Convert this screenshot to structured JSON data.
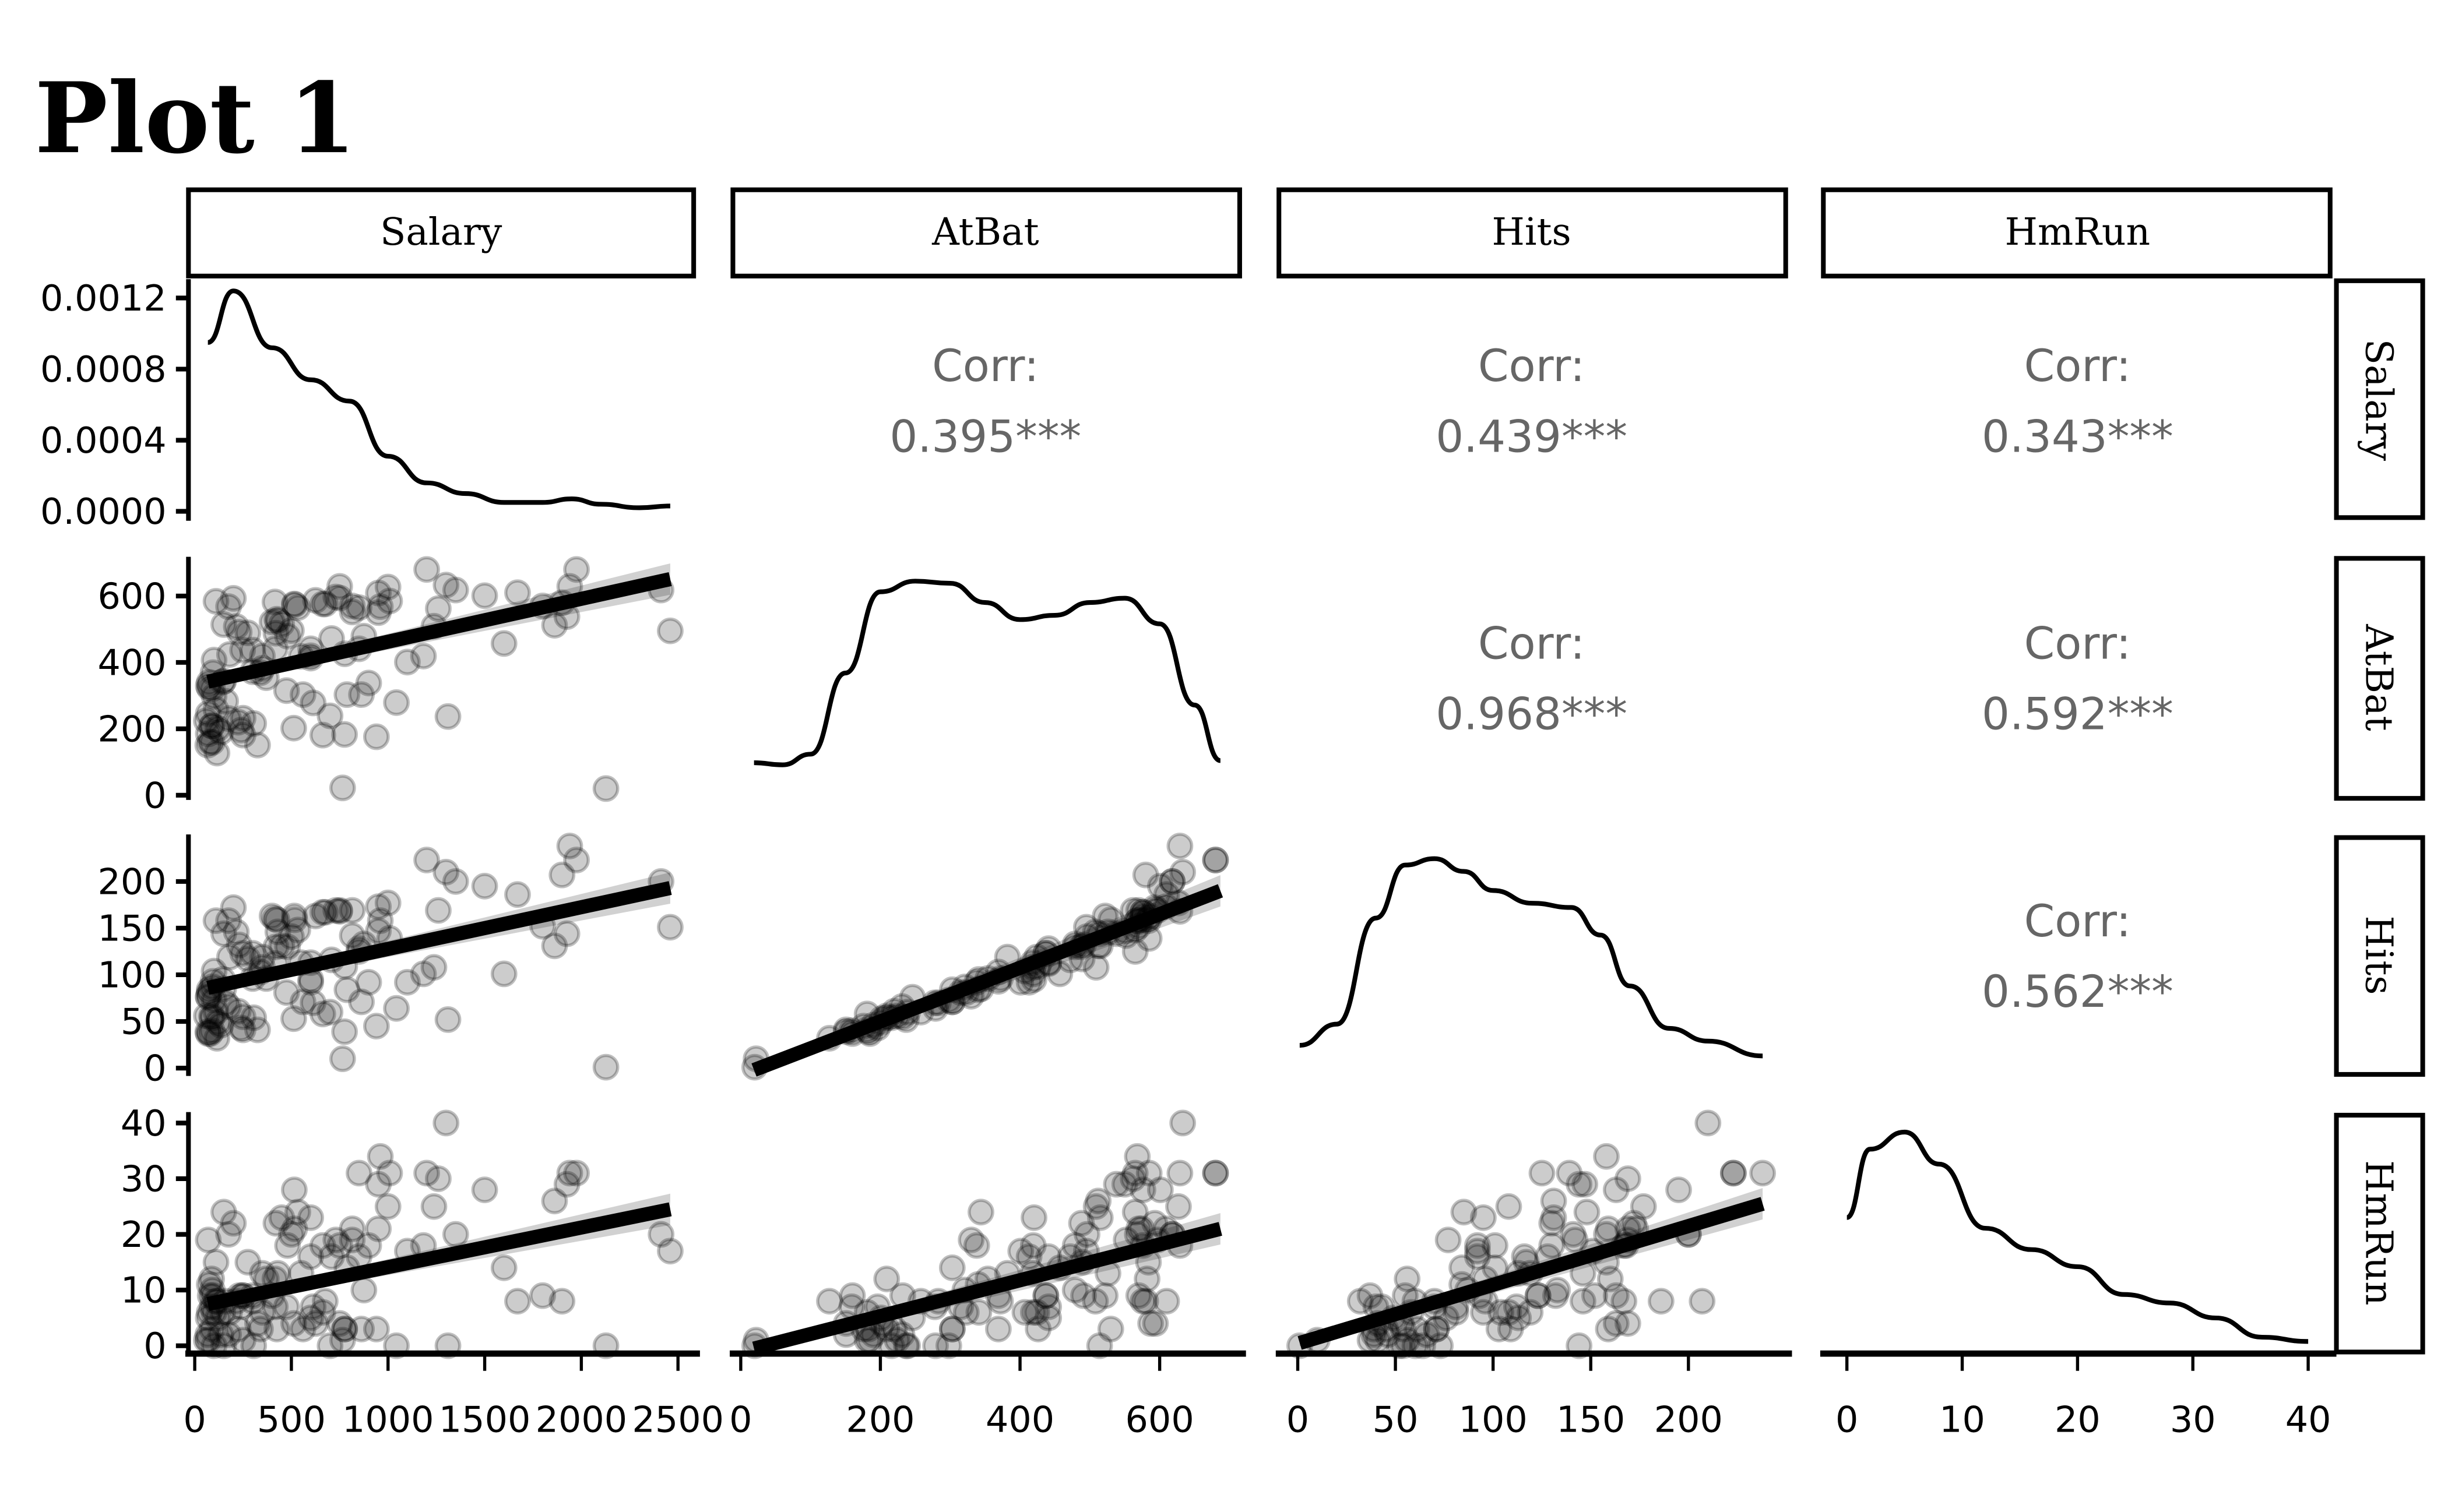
{
  "chart_data": {
    "type": "scatter",
    "title": "Plot 1",
    "variables": [
      "Salary",
      "AtBat",
      "Hits",
      "HmRun"
    ],
    "axes": {
      "Salary": {
        "range": [
          0,
          2500
        ],
        "ticks": [
          0,
          500,
          1000,
          1500,
          2000,
          2500
        ],
        "tick_labels": [
          "0",
          "500",
          "1000",
          "1500",
          "2000",
          "2500"
        ]
      },
      "AtBat": {
        "range": [
          0,
          700
        ],
        "ticks": [
          0,
          200,
          400,
          600
        ],
        "tick_labels": [
          "0",
          "200",
          "400",
          "600"
        ]
      },
      "Hits": {
        "range": [
          0,
          240
        ],
        "ticks": [
          0,
          50,
          100,
          150,
          200
        ],
        "tick_labels": [
          "0",
          "50",
          "100",
          "150",
          "200"
        ]
      },
      "HmRun": {
        "range": [
          0,
          40
        ],
        "ticks": [
          0,
          10,
          20,
          30,
          40
        ],
        "tick_labels": [
          "0",
          "10",
          "20",
          "30",
          "40"
        ]
      },
      "SalaryDensity": {
        "range": [
          0,
          0.0013
        ],
        "ticks": [
          0,
          0.0004,
          0.0008,
          0.0012
        ],
        "tick_labels": [
          "0.0000",
          "0.0004",
          "0.0008",
          "0.0012"
        ]
      }
    },
    "correlations": [
      {
        "row": "Salary",
        "col": "AtBat",
        "label": "Corr:",
        "value": "0.395***"
      },
      {
        "row": "Salary",
        "col": "Hits",
        "label": "Corr:",
        "value": "0.439***"
      },
      {
        "row": "Salary",
        "col": "HmRun",
        "label": "Corr:",
        "value": "0.343***"
      },
      {
        "row": "AtBat",
        "col": "Hits",
        "label": "Corr:",
        "value": "0.968***"
      },
      {
        "row": "AtBat",
        "col": "HmRun",
        "label": "Corr:",
        "value": "0.592***"
      },
      {
        "row": "Hits",
        "col": "HmRun",
        "label": "Corr:",
        "value": "0.562***"
      }
    ],
    "densities": {
      "Salary": {
        "x": [
          68,
          200,
          400,
          600,
          800,
          1000,
          1200,
          1400,
          1600,
          1800,
          1950,
          2100,
          2300,
          2460
        ],
        "y": [
          0.00095,
          0.00124,
          0.00092,
          0.00074,
          0.00062,
          0.00031,
          0.00016,
          0.0001,
          5e-05,
          5e-05,
          7e-05,
          4e-05,
          2e-05,
          3e-05
        ]
      },
      "AtBat": {
        "x": [
          19,
          60,
          100,
          150,
          200,
          250,
          300,
          350,
          400,
          450,
          500,
          550,
          600,
          650,
          687
        ],
        "y": [
          0.13,
          0.12,
          0.17,
          0.55,
          0.93,
          0.98,
          0.97,
          0.88,
          0.8,
          0.82,
          0.88,
          0.9,
          0.78,
          0.4,
          0.14
        ]
      },
      "Hits": {
        "x": [
          1,
          20,
          40,
          55,
          70,
          85,
          100,
          120,
          140,
          155,
          170,
          190,
          210,
          238
        ],
        "y": [
          0.1,
          0.2,
          0.7,
          0.95,
          0.98,
          0.92,
          0.83,
          0.77,
          0.75,
          0.62,
          0.38,
          0.18,
          0.12,
          0.05
        ]
      },
      "HmRun": {
        "x": [
          0,
          2,
          5,
          8,
          12,
          16,
          20,
          24,
          28,
          32,
          36,
          40
        ],
        "y": [
          0.6,
          0.92,
          1.0,
          0.85,
          0.55,
          0.45,
          0.37,
          0.24,
          0.2,
          0.13,
          0.04,
          0.02
        ]
      }
    },
    "regressions": [
      {
        "x": "Salary",
        "y": "AtBat",
        "x_range": [
          68,
          2460
        ],
        "y_fit": [
          342,
          651
        ]
      },
      {
        "x": "Salary",
        "y": "Hits",
        "x_range": [
          68,
          2460
        ],
        "y_fit": [
          86,
          193
        ]
      },
      {
        "x": "Salary",
        "y": "HmRun",
        "x_range": [
          68,
          2460
        ],
        "y_fit": [
          7.5,
          24.5
        ]
      },
      {
        "x": "AtBat",
        "y": "Hits",
        "x_range": [
          19,
          687
        ],
        "y_fit": [
          -2,
          190
        ]
      },
      {
        "x": "AtBat",
        "y": "HmRun",
        "x_range": [
          19,
          687
        ],
        "y_fit": [
          -0.5,
          21
        ]
      },
      {
        "x": "Hits",
        "y": "HmRun",
        "x_range": [
          1,
          238
        ],
        "y_fit": [
          0.5,
          25.5
        ]
      }
    ],
    "points": [
      {
        "Salary": 475,
        "AtBat": 315,
        "Hits": 81,
        "HmRun": 7
      },
      {
        "Salary": 480,
        "AtBat": 479,
        "Hits": 130,
        "HmRun": 18
      },
      {
        "Salary": 500,
        "AtBat": 496,
        "Hits": 141,
        "HmRun": 20
      },
      {
        "Salary": 91.5,
        "AtBat": 321,
        "Hits": 87,
        "HmRun": 10
      },
      {
        "Salary": 750,
        "AtBat": 594,
        "Hits": 169,
        "HmRun": 4
      },
      {
        "Salary": 70,
        "AtBat": 185,
        "Hits": 37,
        "HmRun": 1
      },
      {
        "Salary": 100,
        "AtBat": 298,
        "Hits": 73,
        "HmRun": 0
      },
      {
        "Salary": 75,
        "AtBat": 323,
        "Hits": 81,
        "HmRun": 6
      },
      {
        "Salary": 1100,
        "AtBat": 401,
        "Hits": 92,
        "HmRun": 17
      },
      {
        "Salary": 517,
        "AtBat": 574,
        "Hits": 159,
        "HmRun": 21
      },
      {
        "Salary": 512,
        "AtBat": 202,
        "Hits": 53,
        "HmRun": 4
      },
      {
        "Salary": 550,
        "AtBat": 418,
        "Hits": 113,
        "HmRun": 13
      },
      {
        "Salary": 700,
        "AtBat": 239,
        "Hits": 60,
        "HmRun": 0
      },
      {
        "Salary": 240,
        "AtBat": 196,
        "Hits": 43,
        "HmRun": 7
      },
      {
        "Salary": 775,
        "AtBat": 183,
        "Hits": 39,
        "HmRun": 3
      },
      {
        "Salary": 175,
        "AtBat": 568,
        "Hits": 158,
        "HmRun": 20
      },
      {
        "Salary": 135,
        "AtBat": 190,
        "Hits": 46,
        "HmRun": 2
      },
      {
        "Salary": 100,
        "AtBat": 407,
        "Hits": 104,
        "HmRun": 6
      },
      {
        "Salary": 115,
        "AtBat": 127,
        "Hits": 32,
        "HmRun": 8
      },
      {
        "Salary": 600,
        "AtBat": 413,
        "Hits": 92,
        "HmRun": 16
      },
      {
        "Salary": 776,
        "AtBat": 426,
        "Hits": 109,
        "HmRun": 3
      },
      {
        "Salary": 765,
        "AtBat": 22,
        "Hits": 10,
        "HmRun": 1
      },
      {
        "Salary": 708,
        "AtBat": 472,
        "Hits": 116,
        "HmRun": 16
      },
      {
        "Salary": 750,
        "AtBat": 629,
        "Hits": 168,
        "HmRun": 18
      },
      {
        "Salary": 625,
        "AtBat": 587,
        "Hits": 163,
        "HmRun": 4
      },
      {
        "Salary": 900,
        "AtBat": 338,
        "Hits": 92,
        "HmRun": 18
      },
      {
        "Salary": 110,
        "AtBat": 584,
        "Hits": 158,
        "HmRun": 15
      },
      {
        "Salary": 612.5,
        "AtBat": 278,
        "Hits": 70,
        "HmRun": 7
      },
      {
        "Salary": 300,
        "AtBat": 437,
        "Hits": 123,
        "HmRun": 9
      },
      {
        "Salary": 850,
        "AtBat": 565,
        "Hits": 125,
        "HmRun": 31
      },
      {
        "Salary": 90,
        "AtBat": 209,
        "Hits": 54,
        "HmRun": 3
      },
      {
        "Salary": 67.5,
        "AtBat": 151,
        "Hits": 39,
        "HmRun": 2
      },
      {
        "Salary": 180,
        "AtBat": 424,
        "Hits": 119,
        "HmRun": 6
      },
      {
        "Salary": 305,
        "AtBat": 216,
        "Hits": 54,
        "HmRun": 0
      },
      {
        "Salary": 215,
        "AtBat": 508,
        "Hits": 146,
        "HmRun": 8
      },
      {
        "Salary": 247.5,
        "AtBat": 437,
        "Hits": 123,
        "HmRun": 9
      },
      {
        "Salary": 815,
        "AtBat": 570,
        "Hits": 169,
        "HmRun": 21
      },
      {
        "Salary": 875,
        "AtBat": 479,
        "Hits": 133,
        "HmRun": 10
      },
      {
        "Salary": 70,
        "AtBat": 330,
        "Hits": 77,
        "HmRun": 19
      },
      {
        "Salary": 1200,
        "AtBat": 680,
        "Hits": 223,
        "HmRun": 31
      },
      {
        "Salary": 675,
        "AtBat": 576,
        "Hits": 167,
        "HmRun": 8
      },
      {
        "Salary": 415,
        "AtBat": 582,
        "Hits": 160,
        "HmRun": 12
      },
      {
        "Salary": 340,
        "AtBat": 369,
        "Hits": 103,
        "HmRun": 3
      },
      {
        "Salary": 416.7,
        "AtBat": 441,
        "Hits": 112,
        "HmRun": 7
      },
      {
        "Salary": 1350,
        "AtBat": 618,
        "Hits": 200,
        "HmRun": 20
      },
      {
        "Salary": 90,
        "AtBat": 159,
        "Hits": 40,
        "HmRun": 7
      },
      {
        "Salary": 275,
        "AtBat": 489,
        "Hits": 117,
        "HmRun": 15
      },
      {
        "Salary": 230,
        "AtBat": 491,
        "Hits": 132,
        "HmRun": 9
      },
      {
        "Salary": 225,
        "AtBat": 220,
        "Hits": 61,
        "HmRun": 3
      },
      {
        "Salary": 950,
        "AtBat": 609,
        "Hits": 173,
        "HmRun": 21
      },
      {
        "Salary": 2460,
        "AtBat": 495,
        "Hits": 151,
        "HmRun": 17
      },
      {
        "Salary": 2412.5,
        "AtBat": 618,
        "Hits": 200,
        "HmRun": 20
      },
      {
        "Salary": 2127.3,
        "AtBat": 20,
        "Hits": 1,
        "HmRun": 0
      },
      {
        "Salary": 1940,
        "AtBat": 629,
        "Hits": 238,
        "HmRun": 31
      },
      {
        "Salary": 1975,
        "AtBat": 680,
        "Hits": 223,
        "HmRun": 31
      },
      {
        "Salary": 1861.5,
        "AtBat": 512,
        "Hits": 131,
        "HmRun": 26
      },
      {
        "Salary": 1900,
        "AtBat": 580,
        "Hits": 207,
        "HmRun": 8
      },
      {
        "Salary": 1300,
        "AtBat": 633,
        "Hits": 210,
        "HmRun": 40
      },
      {
        "Salary": 1260,
        "AtBat": 562,
        "Hits": 169,
        "HmRun": 30
      },
      {
        "Salary": 1237.5,
        "AtBat": 509,
        "Hits": 108,
        "HmRun": 25
      },
      {
        "Salary": 1600,
        "AtBat": 457,
        "Hits": 101,
        "HmRun": 14
      },
      {
        "Salary": 1310,
        "AtBat": 237,
        "Hits": 52,
        "HmRun": 0
      },
      {
        "Salary": 1008.3,
        "AtBat": 585,
        "Hits": 139,
        "HmRun": 31
      },
      {
        "Salary": 1043.3,
        "AtBat": 279,
        "Hits": 64,
        "HmRun": 0
      },
      {
        "Salary": 1000,
        "AtBat": 627,
        "Hits": 177,
        "HmRun": 25
      },
      {
        "Salary": 960,
        "AtBat": 568,
        "Hits": 158,
        "HmRun": 34
      },
      {
        "Salary": 940,
        "AtBat": 176,
        "Hits": 45,
        "HmRun": 3
      },
      {
        "Salary": 1800,
        "AtBat": 570,
        "Hits": 152,
        "HmRun": 9
      },
      {
        "Salary": 1183.3,
        "AtBat": 419,
        "Hits": 101,
        "HmRun": 18
      },
      {
        "Salary": 1500,
        "AtBat": 601,
        "Hits": 195,
        "HmRun": 28
      },
      {
        "Salary": 1670,
        "AtBat": 610,
        "Hits": 186,
        "HmRun": 8
      },
      {
        "Salary": 1925.6,
        "AtBat": 538,
        "Hits": 144,
        "HmRun": 29
      },
      {
        "Salary": 662.5,
        "AtBat": 181,
        "Hits": 58,
        "HmRun": 6
      },
      {
        "Salary": 110,
        "AtBat": 258,
        "Hits": 60,
        "HmRun": 8
      },
      {
        "Salary": 250,
        "AtBat": 232,
        "Hits": 55,
        "HmRun": 9
      },
      {
        "Salary": 350,
        "AtBat": 419,
        "Hits": 108,
        "HmRun": 6
      },
      {
        "Salary": 425,
        "AtBat": 530,
        "Hits": 159,
        "HmRun": 3
      },
      {
        "Salary": 600,
        "AtBat": 441,
        "Hits": 113,
        "HmRun": 5
      },
      {
        "Salary": 150,
        "AtBat": 344,
        "Hits": 85,
        "HmRun": 24
      },
      {
        "Salary": 200,
        "AtBat": 593,
        "Hits": 172,
        "HmRun": 22
      },
      {
        "Salary": 560,
        "AtBat": 303,
        "Hits": 71,
        "HmRun": 3
      },
      {
        "Salary": 787.5,
        "AtBat": 303,
        "Hits": 84,
        "HmRun": 14
      },
      {
        "Salary": 150,
        "AtBat": 514,
        "Hits": 144,
        "HmRun": 0
      },
      {
        "Salary": 75,
        "AtBat": 340,
        "Hits": 84,
        "HmRun": 11
      },
      {
        "Salary": 850,
        "AtBat": 441,
        "Hits": 128,
        "HmRun": 16
      },
      {
        "Salary": 250,
        "AtBat": 181,
        "Hits": 41,
        "HmRun": 1
      },
      {
        "Salary": 400,
        "AtBat": 522,
        "Hits": 163,
        "HmRun": 9
      },
      {
        "Salary": 120,
        "AtBat": 201,
        "Hits": 49,
        "HmRun": 5
      },
      {
        "Salary": 145,
        "AtBat": 341,
        "Hits": 95,
        "HmRun": 6
      },
      {
        "Salary": 533.3,
        "AtBat": 565,
        "Hits": 148,
        "HmRun": 24
      },
      {
        "Salary": 450,
        "AtBat": 515,
        "Hits": 131,
        "HmRun": 23
      },
      {
        "Salary": 70,
        "AtBat": 246,
        "Hits": 76,
        "HmRun": 5
      },
      {
        "Salary": 350,
        "AtBat": 382,
        "Hits": 119,
        "HmRun": 13
      },
      {
        "Salary": 662.5,
        "AtBat": 576,
        "Hits": 167,
        "HmRun": 18
      },
      {
        "Salary": 95,
        "AtBat": 369,
        "Hits": 93,
        "HmRun": 9
      },
      {
        "Salary": 87.5,
        "AtBat": 209,
        "Hits": 56,
        "HmRun": 12
      },
      {
        "Salary": 325,
        "AtBat": 151,
        "Hits": 41,
        "HmRun": 4
      },
      {
        "Salary": 430,
        "AtBat": 526,
        "Hits": 146,
        "HmRun": 13
      },
      {
        "Salary": 600,
        "AtBat": 420,
        "Hits": 95,
        "HmRun": 23
      },
      {
        "Salary": 862.5,
        "AtBat": 303,
        "Hits": 71,
        "HmRun": 3
      },
      {
        "Salary": 730,
        "AtBat": 597,
        "Hits": 169,
        "HmRun": 19
      },
      {
        "Salary": 815,
        "AtBat": 552,
        "Hits": 142,
        "HmRun": 19
      },
      {
        "Salary": 950,
        "AtBat": 550,
        "Hits": 147,
        "HmRun": 29
      },
      {
        "Salary": 160,
        "AtBat": 283,
        "Hits": 70,
        "HmRun": 8
      },
      {
        "Salary": 175,
        "AtBat": 231,
        "Hits": 66,
        "HmRun": 2
      },
      {
        "Salary": 60,
        "AtBat": 224,
        "Hits": 56,
        "HmRun": 1
      },
      {
        "Salary": 300,
        "AtBat": 372,
        "Hits": 96,
        "HmRun": 8
      },
      {
        "Salary": 420,
        "AtBat": 488,
        "Hits": 130,
        "HmRun": 22
      },
      {
        "Salary": 80,
        "AtBat": 160,
        "Hits": 37,
        "HmRun": 9
      },
      {
        "Salary": 515,
        "AtBat": 576,
        "Hits": 163,
        "HmRun": 28
      },
      {
        "Salary": 370,
        "AtBat": 354,
        "Hits": 96,
        "HmRun": 12
      }
    ]
  }
}
